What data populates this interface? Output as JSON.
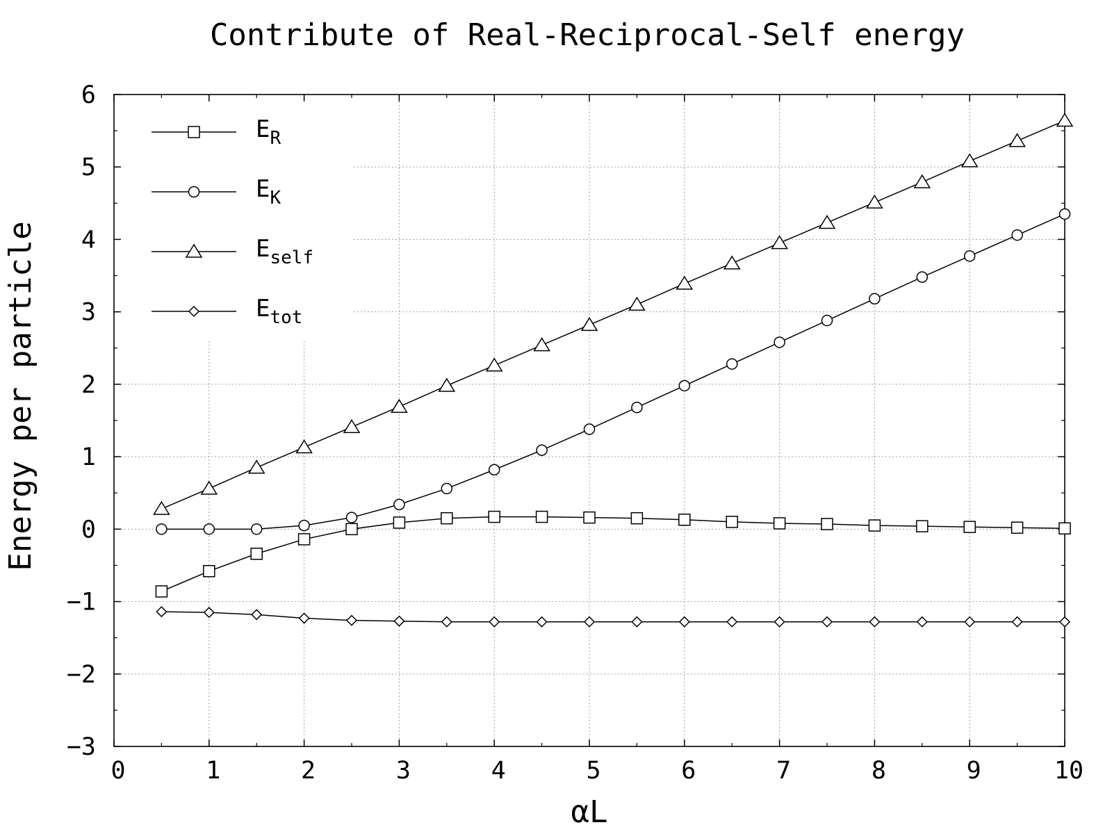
{
  "chart_data": {
    "type": "line",
    "title": "Contribute of Real-Reciprocal-Self energy",
    "xlabel": "αL",
    "ylabel": "Energy per particle",
    "xlim": [
      0,
      10
    ],
    "ylim": [
      -3,
      6
    ],
    "xticks": [
      "0",
      "1",
      "2",
      "3",
      "4",
      "5",
      "6",
      "7",
      "8",
      "9",
      "10"
    ],
    "yticks": [
      "-3",
      "-2",
      "-1",
      "0",
      "1",
      "2",
      "3",
      "4",
      "5",
      "6"
    ],
    "grid": true,
    "legend_position": "top-left",
    "x": [
      0.5,
      1.0,
      1.5,
      2.0,
      2.5,
      3.0,
      3.5,
      4.0,
      4.5,
      5.0,
      5.5,
      6.0,
      6.5,
      7.0,
      7.5,
      8.0,
      8.5,
      9.0,
      9.5,
      10.0
    ],
    "series": [
      {
        "name": "E_R",
        "legend_main": "E",
        "legend_sub": "R",
        "marker": "square",
        "values": [
          -0.86,
          -0.58,
          -0.34,
          -0.14,
          0.0,
          0.09,
          0.15,
          0.17,
          0.17,
          0.16,
          0.15,
          0.13,
          0.1,
          0.08,
          0.07,
          0.05,
          0.04,
          0.03,
          0.02,
          0.01
        ]
      },
      {
        "name": "E_K",
        "legend_main": "E",
        "legend_sub": "K",
        "marker": "circle",
        "values": [
          0.0,
          0.0,
          0.0,
          0.05,
          0.16,
          0.34,
          0.56,
          0.82,
          1.09,
          1.38,
          1.68,
          1.98,
          2.28,
          2.58,
          2.88,
          3.18,
          3.48,
          3.77,
          4.06,
          4.35
        ]
      },
      {
        "name": "E_self",
        "legend_main": "E",
        "legend_sub": "self",
        "marker": "triangle",
        "values": [
          0.28,
          0.56,
          0.85,
          1.13,
          1.41,
          1.69,
          1.98,
          2.26,
          2.54,
          2.82,
          3.1,
          3.39,
          3.67,
          3.95,
          4.23,
          4.51,
          4.79,
          5.08,
          5.36,
          5.64
        ]
      },
      {
        "name": "E_tot",
        "legend_main": "E",
        "legend_sub": "tot",
        "marker": "diamond",
        "values": [
          -1.14,
          -1.15,
          -1.18,
          -1.23,
          -1.26,
          -1.27,
          -1.28,
          -1.28,
          -1.28,
          -1.28,
          -1.28,
          -1.28,
          -1.28,
          -1.28,
          -1.28,
          -1.28,
          -1.28,
          -1.28,
          -1.28,
          -1.28
        ]
      }
    ]
  }
}
